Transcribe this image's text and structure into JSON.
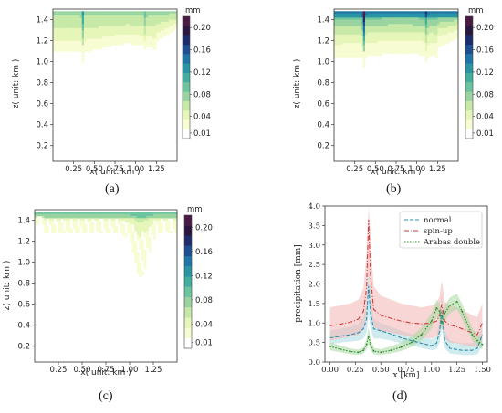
{
  "panels": {
    "a": {
      "label": "(a)",
      "xlabel": "x( unit: km )",
      "ylabel": "z( unit: km )",
      "units": "mm"
    },
    "b": {
      "label": "(b)",
      "xlabel": "x( unit: km )",
      "ylabel": "z( unit: km )",
      "units": "mm"
    },
    "c": {
      "label": "(c)",
      "xlabel": "x( unit: km )",
      "ylabel": "z( unit: km )",
      "units": "mm"
    },
    "d": {
      "label": "(d)",
      "xlabel": "x [km]",
      "ylabel": "precipitation [mm]"
    }
  },
  "colorbar_ticks": [
    "0.20",
    "0.16",
    "0.12",
    "0.08",
    "0.04",
    "0.01"
  ],
  "colorbar_colors": [
    "#ffffff",
    "#f7fcd2",
    "#e6f5b8",
    "#c7e9a8",
    "#99d4a0",
    "#6cc39f",
    "#43ae9e",
    "#2795a3",
    "#1f76a6",
    "#1d4f92",
    "#1d2c6b",
    "#2a1640",
    "#4a1a45"
  ],
  "chart_data": [
    {
      "type": "heatmap",
      "panel": "a",
      "xlabel": "x( unit: km )",
      "ylabel": "z( unit: km )",
      "x_ticks": [
        "0.25",
        "0.50",
        "0.75",
        "1.00",
        "1.25"
      ],
      "y_ticks": [
        "0.2",
        "0.4",
        "0.6",
        "0.8",
        "1.0",
        "1.2",
        "1.4"
      ],
      "xlim": [
        0,
        1.5
      ],
      "ylim": [
        0.05,
        1.5
      ],
      "colorbar": {
        "label": "mm",
        "ticks": [
          0.2,
          0.16,
          0.12,
          0.08,
          0.04,
          0.01
        ]
      }
    },
    {
      "type": "heatmap",
      "panel": "b",
      "xlabel": "x( unit: km )",
      "ylabel": "z( unit: km )",
      "x_ticks": [
        "0.25",
        "0.50",
        "0.75",
        "1.00",
        "1.25"
      ],
      "y_ticks": [
        "0.2",
        "0.4",
        "0.6",
        "0.8",
        "1.0",
        "1.2",
        "1.4"
      ],
      "xlim": [
        0,
        1.5
      ],
      "ylim": [
        0.05,
        1.5
      ],
      "colorbar": {
        "label": "mm",
        "ticks": [
          0.2,
          0.16,
          0.12,
          0.08,
          0.04,
          0.01
        ]
      }
    },
    {
      "type": "heatmap",
      "panel": "c",
      "xlabel": "x( unit: km )",
      "ylabel": "z( unit: km )",
      "x_ticks": [
        "0.25",
        "0.50",
        "0.75",
        "1.00",
        "1.25"
      ],
      "y_ticks": [
        "0.2",
        "0.4",
        "0.6",
        "0.8",
        "1.0",
        "1.2",
        "1.4"
      ],
      "xlim": [
        0,
        1.5
      ],
      "ylim": [
        0.05,
        1.5
      ],
      "colorbar": {
        "label": "mm",
        "ticks": [
          0.2,
          0.16,
          0.12,
          0.08,
          0.04,
          0.01
        ]
      }
    },
    {
      "type": "line",
      "panel": "d",
      "xlabel": "x [km]",
      "ylabel": "precipitation [mm]",
      "xlim": [
        -0.05,
        1.55
      ],
      "ylim": [
        0,
        4.0
      ],
      "x_ticks": [
        0.0,
        0.25,
        0.5,
        0.75,
        1.0,
        1.25,
        1.5
      ],
      "x_tick_labels": [
        "0.00",
        "0.25",
        "0.50",
        "0.75",
        "1.00",
        "1.25",
        "1.50"
      ],
      "y_ticks": [
        0.0,
        0.5,
        1.0,
        1.5,
        2.0,
        2.5,
        3.0,
        3.5,
        4.0
      ],
      "y_tick_labels": [
        "0.0",
        "0.5",
        "1.0",
        "1.5",
        "2.0",
        "2.5",
        "3.0",
        "3.5",
        "4.0"
      ],
      "legend": "top-right",
      "series": [
        {
          "name": "normal",
          "color": "#2a8fb0",
          "fill": "#a9dbe0",
          "style": "dashed",
          "x": [
            0.0,
            0.1,
            0.2,
            0.28,
            0.33,
            0.36,
            0.38,
            0.4,
            0.43,
            0.5,
            0.6,
            0.7,
            0.8,
            0.9,
            1.0,
            1.05,
            1.08,
            1.1,
            1.13,
            1.18,
            1.25,
            1.3,
            1.4,
            1.45,
            1.5
          ],
          "y": [
            0.62,
            0.66,
            0.7,
            0.75,
            0.85,
            1.1,
            1.95,
            1.25,
            0.85,
            0.8,
            0.72,
            0.62,
            0.55,
            0.48,
            0.42,
            0.48,
            0.8,
            1.3,
            0.55,
            0.35,
            0.32,
            0.3,
            0.3,
            0.35,
            0.7
          ],
          "band_low": [
            0.45,
            0.5,
            0.52,
            0.55,
            0.6,
            0.75,
            1.2,
            0.85,
            0.6,
            0.6,
            0.55,
            0.48,
            0.42,
            0.36,
            0.3,
            0.34,
            0.5,
            0.85,
            0.35,
            0.22,
            0.2,
            0.18,
            0.18,
            0.2,
            0.4
          ],
          "band_high": [
            0.8,
            0.85,
            0.9,
            0.97,
            1.15,
            1.5,
            2.7,
            1.7,
            1.1,
            1.0,
            0.9,
            0.8,
            0.72,
            0.65,
            0.58,
            0.65,
            1.15,
            1.8,
            0.8,
            0.55,
            0.5,
            0.48,
            0.48,
            0.55,
            1.05
          ]
        },
        {
          "name": "spin-up",
          "color": "#d23b3b",
          "fill": "#f4b4b4",
          "style": "dashdot",
          "x": [
            0.0,
            0.1,
            0.2,
            0.28,
            0.33,
            0.36,
            0.38,
            0.4,
            0.43,
            0.5,
            0.6,
            0.7,
            0.8,
            0.9,
            1.0,
            1.05,
            1.08,
            1.1,
            1.13,
            1.18,
            1.25,
            1.3,
            1.4,
            1.45,
            1.5
          ],
          "y": [
            0.93,
            0.97,
            1.02,
            1.1,
            1.3,
            1.9,
            3.65,
            2.2,
            1.35,
            1.2,
            1.12,
            1.05,
            1.0,
            0.98,
            1.0,
            1.05,
            1.2,
            1.48,
            1.05,
            0.95,
            0.9,
            0.85,
            0.75,
            0.7,
            1.0
          ],
          "band_low": [
            0.55,
            0.6,
            0.65,
            0.7,
            0.85,
            1.2,
            2.4,
            1.4,
            0.9,
            0.8,
            0.75,
            0.7,
            0.65,
            0.62,
            0.6,
            0.65,
            0.75,
            0.95,
            0.6,
            0.5,
            0.48,
            0.45,
            0.4,
            0.38,
            0.55
          ],
          "band_high": [
            1.4,
            1.45,
            1.5,
            1.6,
            1.9,
            2.8,
            4.0,
            3.2,
            1.95,
            1.7,
            1.6,
            1.5,
            1.45,
            1.4,
            1.45,
            1.5,
            1.7,
            2.1,
            1.55,
            1.45,
            1.4,
            1.35,
            1.2,
            1.15,
            1.5
          ]
        },
        {
          "name": "Arabas double",
          "color": "#2e8b2e",
          "fill": "#a8d8a0",
          "style": "dotted",
          "x": [
            0.0,
            0.1,
            0.2,
            0.28,
            0.33,
            0.36,
            0.38,
            0.4,
            0.43,
            0.5,
            0.6,
            0.7,
            0.8,
            0.9,
            1.0,
            1.05,
            1.08,
            1.1,
            1.13,
            1.18,
            1.25,
            1.3,
            1.4,
            1.45,
            1.5
          ],
          "y": [
            0.4,
            0.33,
            0.27,
            0.25,
            0.3,
            0.45,
            0.65,
            0.45,
            0.28,
            0.25,
            0.3,
            0.38,
            0.5,
            0.7,
            1.05,
            1.38,
            1.3,
            1.0,
            1.25,
            1.45,
            1.55,
            1.3,
            0.7,
            0.55,
            0.45
          ],
          "band_low": [
            0.3,
            0.25,
            0.2,
            0.18,
            0.22,
            0.32,
            0.45,
            0.3,
            0.2,
            0.18,
            0.22,
            0.28,
            0.38,
            0.55,
            0.85,
            1.15,
            1.1,
            0.8,
            1.05,
            1.25,
            1.35,
            1.1,
            0.55,
            0.42,
            0.32
          ],
          "band_high": [
            0.5,
            0.42,
            0.35,
            0.32,
            0.38,
            0.6,
            0.9,
            0.6,
            0.36,
            0.33,
            0.4,
            0.5,
            0.65,
            0.88,
            1.25,
            1.6,
            1.5,
            1.2,
            1.45,
            1.65,
            1.75,
            1.5,
            0.88,
            0.7,
            0.6
          ]
        }
      ]
    }
  ]
}
